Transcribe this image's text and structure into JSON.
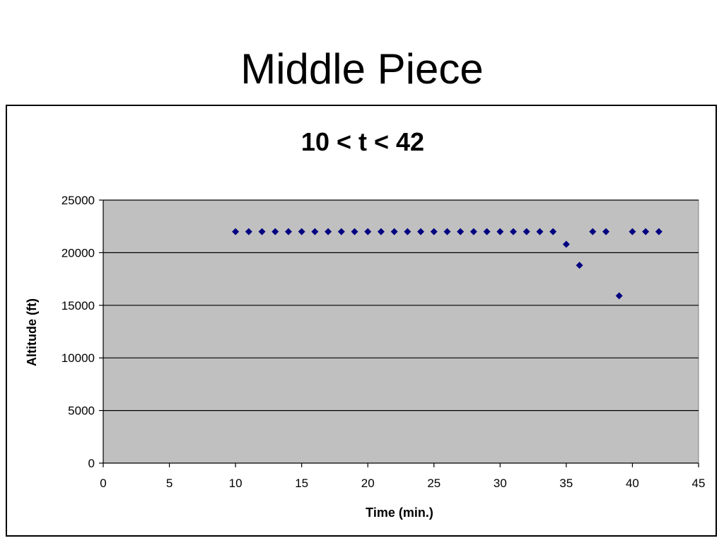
{
  "slide": {
    "title": "Middle Piece"
  },
  "chart_data": {
    "type": "scatter",
    "title": "10 < t < 42",
    "xlabel": "Time (min.)",
    "ylabel": "Altitude (ft)",
    "xlim": [
      0,
      45
    ],
    "ylim": [
      0,
      25000
    ],
    "xticks": [
      0,
      5,
      10,
      15,
      20,
      25,
      30,
      35,
      40,
      45
    ],
    "yticks": [
      0,
      5000,
      10000,
      15000,
      20000,
      25000
    ],
    "grid": "horizontal major",
    "legend": "none",
    "plot_background": "#c0c0c0",
    "marker": "diamond",
    "marker_color": "#000080",
    "series": [
      {
        "points": [
          [
            10,
            22000
          ],
          [
            11,
            22000
          ],
          [
            12,
            22000
          ],
          [
            13,
            22000
          ],
          [
            14,
            22000
          ],
          [
            15,
            22000
          ],
          [
            16,
            22000
          ],
          [
            17,
            22000
          ],
          [
            18,
            22000
          ],
          [
            19,
            22000
          ],
          [
            20,
            22000
          ],
          [
            21,
            22000
          ],
          [
            22,
            22000
          ],
          [
            23,
            22000
          ],
          [
            24,
            22000
          ],
          [
            25,
            22000
          ],
          [
            26,
            22000
          ],
          [
            27,
            22000
          ],
          [
            28,
            22000
          ],
          [
            29,
            22000
          ],
          [
            30,
            22000
          ],
          [
            31,
            22000
          ],
          [
            32,
            22000
          ],
          [
            33,
            22000
          ],
          [
            34,
            22000
          ],
          [
            35,
            20800
          ],
          [
            36,
            18800
          ],
          [
            37,
            22000
          ],
          [
            38,
            22000
          ],
          [
            39,
            15900
          ],
          [
            40,
            22000
          ],
          [
            41,
            22000
          ],
          [
            42,
            22000
          ]
        ]
      }
    ]
  }
}
